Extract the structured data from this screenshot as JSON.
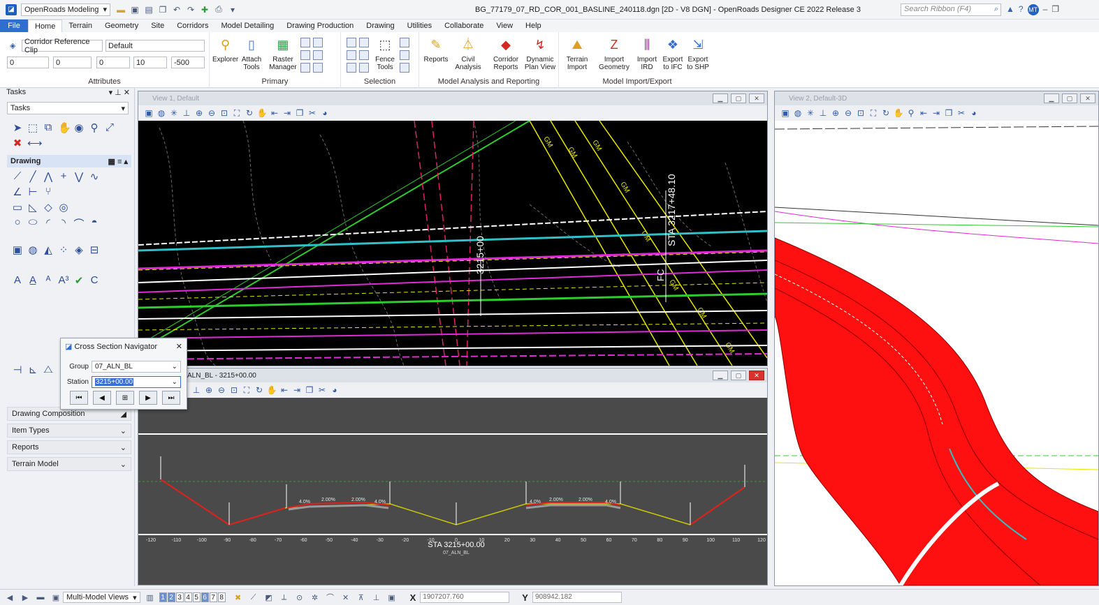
{
  "titlebar": {
    "workspace": "OpenRoads Modeling",
    "document_title": "BG_77179_07_RD_COR_001_BASLINE_240118.dgn [2D - V8 DGN] - OpenRoads Designer CE 2022 Release 3",
    "search_placeholder": "Search Ribbon (F4)",
    "user_initials": "MT"
  },
  "menu": [
    "File",
    "Home",
    "Terrain",
    "Geometry",
    "Site",
    "Corridors",
    "Model Detailing",
    "Drawing Production",
    "Drawing",
    "Utilities",
    "Collaborate",
    "View",
    "Help"
  ],
  "ribbon": {
    "attributes": {
      "level": "Corridor Reference Clip",
      "style": "Default",
      "color": "0",
      "weight": "0",
      "linestyle": "0",
      "transparency": "10",
      "priority": "-500",
      "label": "Attributes"
    },
    "primary": {
      "label": "Primary",
      "explorer": "Explorer",
      "attach_tools": "Attach Tools",
      "raster_manager": "Raster Manager"
    },
    "selection": {
      "label": "Selection",
      "fence_tools": "Fence Tools"
    },
    "analysis": {
      "label": "Model Analysis and Reporting",
      "reports": "Reports",
      "civil_analysis": "Civil Analysis",
      "corridor_reports": "Corridor Reports",
      "dynamic_plan_view": "Dynamic Plan View"
    },
    "import_export": {
      "label": "Model Import/Export",
      "terrain_import": "Terrain Import",
      "import_geometry": "Import Geometry",
      "import_ird": "Import IRD",
      "export_ifc": "Export to IFC",
      "export_shp": "Export to SHP"
    }
  },
  "tasks": {
    "title": "Tasks",
    "selector": "Tasks",
    "drawing_section": "Drawing",
    "accordion": [
      "Drawing Composition",
      "Item Types",
      "Reports",
      "Terrain Model"
    ]
  },
  "views": {
    "view1_title": "View 1, Default",
    "view2_title": "View 2, Default-3D",
    "xs_title": "ALN_BL - 3215+00.00",
    "station_label": "3215+00",
    "fc_label": "FC",
    "sta_label": "STA 3217+48.10",
    "xs_station": "STA 3215+00.00",
    "xs_alignment": "07_ALN_BL",
    "xs_ticks": [
      "-120",
      "-110",
      "-100",
      "-90",
      "-80",
      "-70",
      "-60",
      "-50",
      "-40",
      "-30",
      "-20",
      "-10",
      "0",
      "10",
      "20",
      "30",
      "40",
      "50",
      "60",
      "70",
      "80",
      "90",
      "100",
      "110",
      "120"
    ],
    "xs_slopes": [
      "4.0%",
      "2.00%",
      "2.00%",
      "4.0%",
      "4.0%",
      "2.00%",
      "2.00%",
      "4.0%"
    ],
    "gm_labels": [
      "GM",
      "GM",
      "GM",
      "GM",
      "GM",
      "GM",
      "GM",
      "GM"
    ]
  },
  "xsn": {
    "title": "Cross Section Navigator",
    "group_label": "Group",
    "group_value": "07_ALN_BL",
    "station_label": "Station",
    "station_value": "3215+00.00"
  },
  "statusbar": {
    "model_views": "Multi-Model Views",
    "view_numbers": [
      "1",
      "2",
      "3",
      "4",
      "5",
      "6",
      "7",
      "8"
    ],
    "x_label": "X",
    "x_value": "1907207.760",
    "y_label": "Y",
    "y_value": "908942.182"
  }
}
